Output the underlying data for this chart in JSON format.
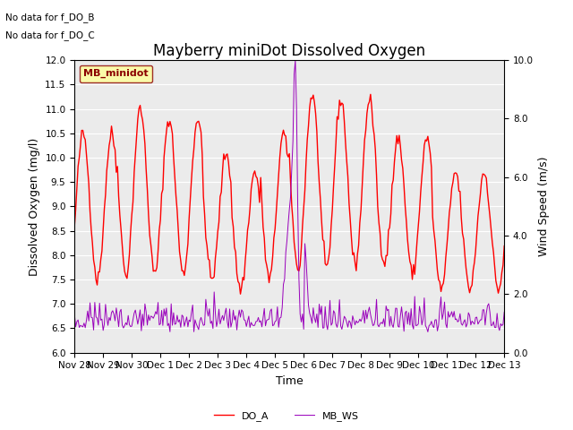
{
  "title": "Mayberry miniDot Dissolved Oxygen",
  "xlabel": "Time",
  "ylabel_left": "Dissolved Oxygen (mg/l)",
  "ylabel_right": "Wind Speed (m/s)",
  "annotation1": "No data for f_DO_B",
  "annotation2": "No data for f_DO_C",
  "legend_label1": "DO_A",
  "legend_label2": "MB_WS",
  "legend_box_label": "MB_minidot",
  "color_DO_A": "#ff0000",
  "color_MB_WS": "#9900bb",
  "ylim_left": [
    6.0,
    12.0
  ],
  "ylim_right": [
    0.0,
    10.0
  ],
  "tick_labels_x": [
    "Nov 28",
    "Nov 29",
    "Nov 30",
    "Dec 1",
    "Dec 2",
    "Dec 3",
    "Dec 4",
    "Dec 5",
    "Dec 6",
    "Dec 7",
    "Dec 8",
    "Dec 9",
    "Dec 10",
    "Dec 11",
    "Dec 12",
    "Dec 13"
  ],
  "background_color": "#ebebeb",
  "grid_color": "#ffffff",
  "title_fontsize": 12,
  "label_fontsize": 9,
  "tick_fontsize": 7.5,
  "annot_fontsize": 7.5,
  "legend_fontsize": 8
}
